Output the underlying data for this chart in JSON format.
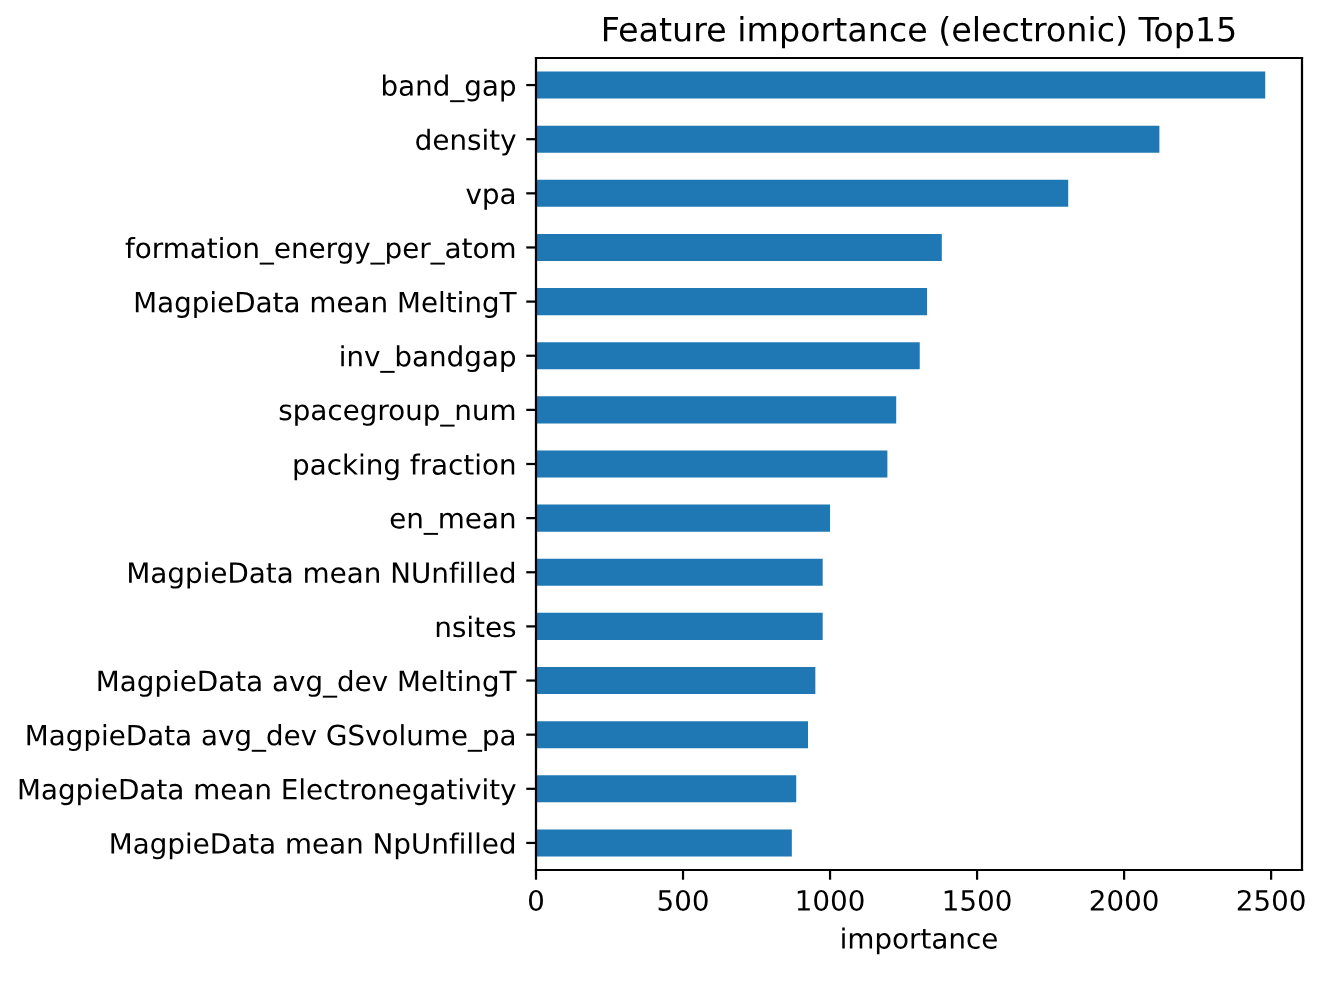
{
  "chart_data": {
    "type": "bar",
    "orientation": "horizontal",
    "title": "Feature importance (electronic) Top15",
    "xlabel": "importance",
    "categories": [
      "band_gap",
      "density",
      "vpa",
      "formation_energy_per_atom",
      "MagpieData mean MeltingT",
      "inv_bandgap",
      "spacegroup_num",
      "packing fraction",
      "en_mean",
      "MagpieData mean NUnfilled",
      "nsites",
      "MagpieData avg_dev MeltingT",
      "MagpieData avg_dev GSvolume_pa",
      "MagpieData mean Electronegativity",
      "MagpieData mean NpUnfilled"
    ],
    "values": [
      2480,
      2120,
      1810,
      1380,
      1330,
      1305,
      1225,
      1195,
      1000,
      975,
      975,
      950,
      925,
      885,
      870
    ],
    "color": "#1f77b4",
    "xlim": [
      0,
      2605
    ],
    "xticks": [
      0,
      500,
      1000,
      1500,
      2000,
      2500
    ],
    "grid": false,
    "legend": false
  }
}
